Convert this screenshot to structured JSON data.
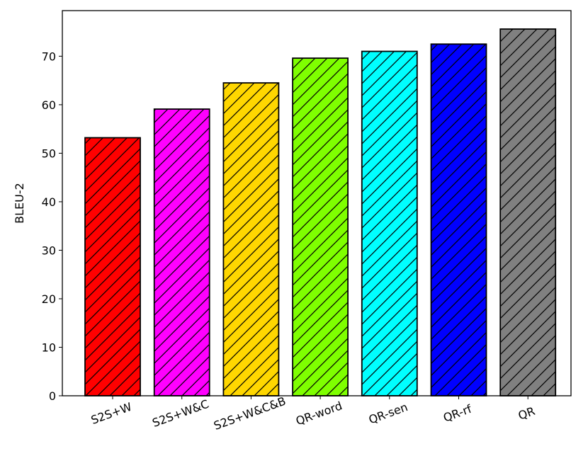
{
  "chart_data": {
    "type": "bar",
    "categories": [
      "S2S+W",
      "S2S+W&C",
      "S2S+W&C&B",
      "QR-word",
      "QR-sen",
      "QR-rf",
      "QR"
    ],
    "values": [
      53.2,
      59.1,
      64.5,
      69.6,
      71.0,
      72.5,
      75.6
    ],
    "colors": [
      "#ff0000",
      "#ff00ff",
      "#ffd700",
      "#7fff00",
      "#00ffff",
      "#0000ff",
      "#808080"
    ],
    "hatch": "diagonal",
    "xlabel": "",
    "ylabel": "BLEU-2",
    "ylim": [
      0,
      79.4
    ],
    "yticks": [
      0,
      10,
      20,
      30,
      40,
      50,
      60,
      70
    ],
    "xtick_rotation": -20,
    "grid": false,
    "legend": false
  }
}
